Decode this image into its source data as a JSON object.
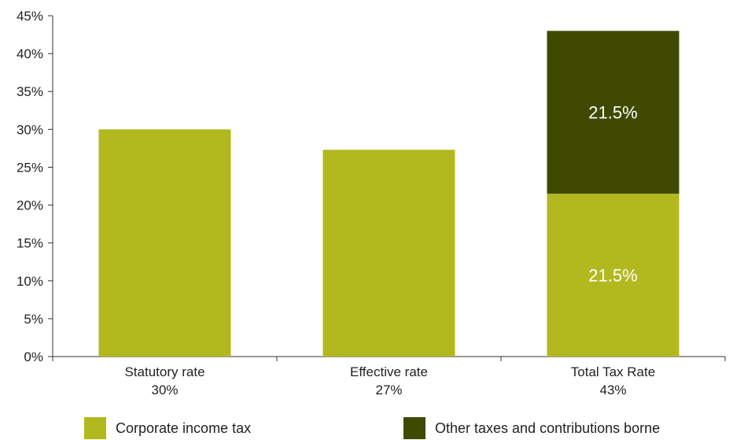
{
  "chart_data": {
    "type": "bar",
    "stacked": true,
    "categories": [
      "Statutory rate",
      "Effective rate",
      "Total Tax Rate"
    ],
    "category_values": [
      "30%",
      "27%",
      "43%"
    ],
    "series": [
      {
        "name": "Corporate income tax",
        "color": "#b2b91f",
        "values": [
          30,
          27.3,
          21.5
        ]
      },
      {
        "name": "Other taxes and contributions borne",
        "color": "#3f4a00",
        "values": [
          0,
          0,
          21.5
        ]
      }
    ],
    "data_labels": [
      {
        "category": 2,
        "series": 0,
        "text": "21.5%"
      },
      {
        "category": 2,
        "series": 1,
        "text": "21.5%"
      }
    ],
    "y_ticks": [
      "0%",
      "5%",
      "10%",
      "15%",
      "20%",
      "25%",
      "30%",
      "35%",
      "40%",
      "45%"
    ],
    "ylim": [
      0,
      45
    ],
    "grid": false,
    "legend_position": "bottom"
  }
}
